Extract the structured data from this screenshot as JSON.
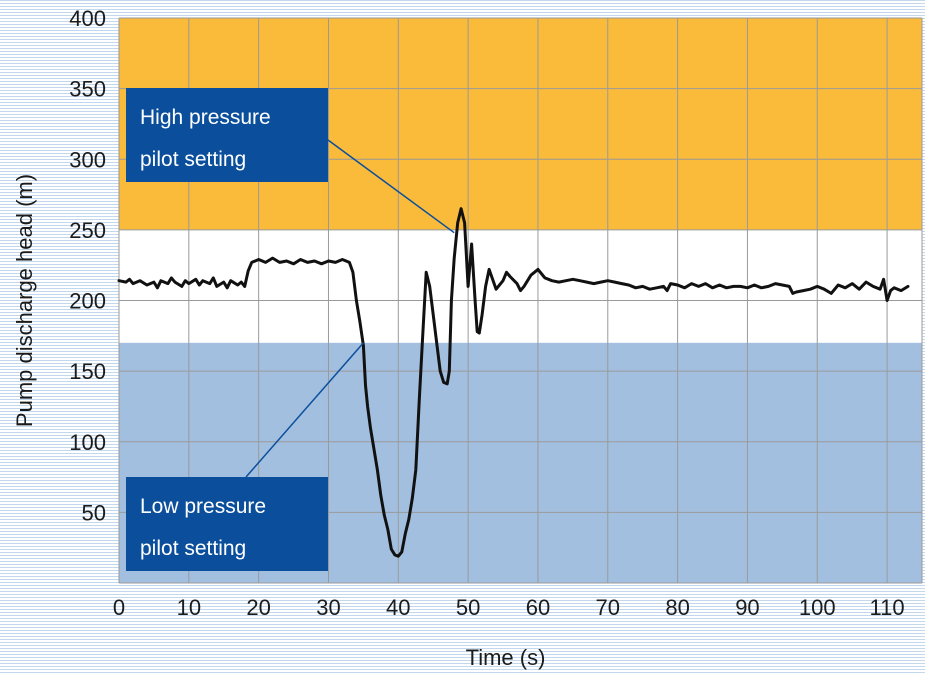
{
  "chart_data": {
    "type": "line",
    "title": "",
    "xlabel": "Time (s)",
    "ylabel": "Pump discharge head  (m)",
    "xlim": [
      0,
      115
    ],
    "ylim": [
      0,
      400
    ],
    "x_ticks": [
      0,
      10,
      20,
      30,
      40,
      50,
      60,
      70,
      80,
      90,
      100,
      110
    ],
    "y_ticks": [
      50,
      100,
      150,
      200,
      250,
      300,
      350,
      400
    ],
    "grid": true,
    "bands": [
      {
        "name": "high-pressure-zone",
        "from": 250,
        "to": 400,
        "color": "#fbbb3a"
      },
      {
        "name": "normal-zone",
        "from": 170,
        "to": 250,
        "color": "#ffffff"
      },
      {
        "name": "low-pressure-zone",
        "from": 0,
        "to": 170,
        "color": "#a2bfe0"
      }
    ],
    "series": [
      {
        "color": "#111111",
        "points": [
          [
            0,
            214
          ],
          [
            1,
            213
          ],
          [
            1.5,
            215
          ],
          [
            2,
            212
          ],
          [
            3,
            214
          ],
          [
            4,
            211
          ],
          [
            5,
            213
          ],
          [
            5.5,
            209
          ],
          [
            6,
            214
          ],
          [
            7,
            212
          ],
          [
            7.5,
            216
          ],
          [
            8,
            213
          ],
          [
            9,
            210
          ],
          [
            9.5,
            214
          ],
          [
            10,
            212
          ],
          [
            11,
            215
          ],
          [
            11.5,
            211
          ],
          [
            12,
            214
          ],
          [
            13,
            212
          ],
          [
            13.5,
            216
          ],
          [
            14,
            210
          ],
          [
            15,
            213
          ],
          [
            15.5,
            209
          ],
          [
            16,
            214
          ],
          [
            17,
            211
          ],
          [
            17.5,
            213
          ],
          [
            18,
            210
          ],
          [
            18.5,
            221
          ],
          [
            19,
            227
          ],
          [
            20,
            229
          ],
          [
            21,
            227
          ],
          [
            22,
            230
          ],
          [
            23,
            227
          ],
          [
            24,
            228
          ],
          [
            25,
            226
          ],
          [
            26,
            229
          ],
          [
            27,
            227
          ],
          [
            28,
            228
          ],
          [
            29,
            226
          ],
          [
            30,
            228
          ],
          [
            31,
            227
          ],
          [
            32,
            229
          ],
          [
            33,
            227
          ],
          [
            33.5,
            220
          ],
          [
            34,
            200
          ],
          [
            34.5,
            185
          ],
          [
            35,
            168
          ],
          [
            35.3,
            140
          ],
          [
            35.6,
            125
          ],
          [
            36,
            110
          ],
          [
            36.5,
            95
          ],
          [
            37,
            80
          ],
          [
            37.5,
            62
          ],
          [
            38,
            48
          ],
          [
            38.5,
            38
          ],
          [
            39,
            24
          ],
          [
            39.5,
            20
          ],
          [
            40,
            19
          ],
          [
            40.5,
            22
          ],
          [
            41,
            35
          ],
          [
            41.5,
            45
          ],
          [
            42,
            60
          ],
          [
            42.5,
            80
          ],
          [
            43,
            130
          ],
          [
            43.5,
            175
          ],
          [
            44,
            220
          ],
          [
            44.5,
            210
          ],
          [
            45,
            190
          ],
          [
            45.5,
            170
          ],
          [
            46,
            150
          ],
          [
            46.5,
            142
          ],
          [
            47,
            141
          ],
          [
            47.3,
            150
          ],
          [
            47.6,
            200
          ],
          [
            48,
            230
          ],
          [
            48.5,
            255
          ],
          [
            49,
            265
          ],
          [
            49.5,
            255
          ],
          [
            50,
            210
          ],
          [
            50.5,
            240
          ],
          [
            51,
            200
          ],
          [
            51.3,
            178
          ],
          [
            51.6,
            177
          ],
          [
            52,
            190
          ],
          [
            52.5,
            210
          ],
          [
            53,
            222
          ],
          [
            53.5,
            215
          ],
          [
            54,
            208
          ],
          [
            55,
            214
          ],
          [
            55.5,
            220
          ],
          [
            56,
            217
          ],
          [
            57,
            212
          ],
          [
            57.5,
            207
          ],
          [
            58,
            210
          ],
          [
            59,
            218
          ],
          [
            60,
            222
          ],
          [
            61,
            216
          ],
          [
            62,
            214
          ],
          [
            63,
            213
          ],
          [
            64,
            214
          ],
          [
            65,
            215
          ],
          [
            66,
            214
          ],
          [
            67,
            213
          ],
          [
            68,
            212
          ],
          [
            69,
            213
          ],
          [
            70,
            214
          ],
          [
            71,
            213
          ],
          [
            72,
            212
          ],
          [
            73,
            211
          ],
          [
            74,
            209
          ],
          [
            75,
            210
          ],
          [
            76,
            208
          ],
          [
            77,
            209
          ],
          [
            78,
            210
          ],
          [
            78.5,
            207
          ],
          [
            79,
            212
          ],
          [
            80,
            211
          ],
          [
            81,
            209
          ],
          [
            82,
            212
          ],
          [
            83,
            210
          ],
          [
            84,
            212
          ],
          [
            85,
            209
          ],
          [
            86,
            211
          ],
          [
            87,
            209
          ],
          [
            88,
            210
          ],
          [
            89,
            210
          ],
          [
            90,
            209
          ],
          [
            91,
            211
          ],
          [
            92,
            209
          ],
          [
            93,
            210
          ],
          [
            94,
            212
          ],
          [
            95,
            211
          ],
          [
            96,
            210
          ],
          [
            96.5,
            205
          ],
          [
            97,
            206
          ],
          [
            98,
            207
          ],
          [
            99,
            208
          ],
          [
            100,
            210
          ],
          [
            101,
            208
          ],
          [
            102,
            205
          ],
          [
            103,
            211
          ],
          [
            104,
            209
          ],
          [
            105,
            212
          ],
          [
            106,
            208
          ],
          [
            107,
            213
          ],
          [
            108,
            210
          ],
          [
            109,
            208
          ],
          [
            109.5,
            215
          ],
          [
            110,
            200
          ],
          [
            110.5,
            207
          ],
          [
            111,
            209
          ],
          [
            112,
            207
          ],
          [
            113,
            210
          ]
        ]
      }
    ],
    "annotations": [
      {
        "name": "high-pressure-callout",
        "line1": "High pressure",
        "line2": "pilot setting",
        "box_color": "#0b4f9c",
        "pointer_to": [
          48,
          248
        ]
      },
      {
        "name": "low-pressure-callout",
        "line1": "Low  pressure",
        "line2": "pilot setting",
        "box_color": "#0b4f9c",
        "pointer_to": [
          35,
          170
        ]
      }
    ]
  }
}
